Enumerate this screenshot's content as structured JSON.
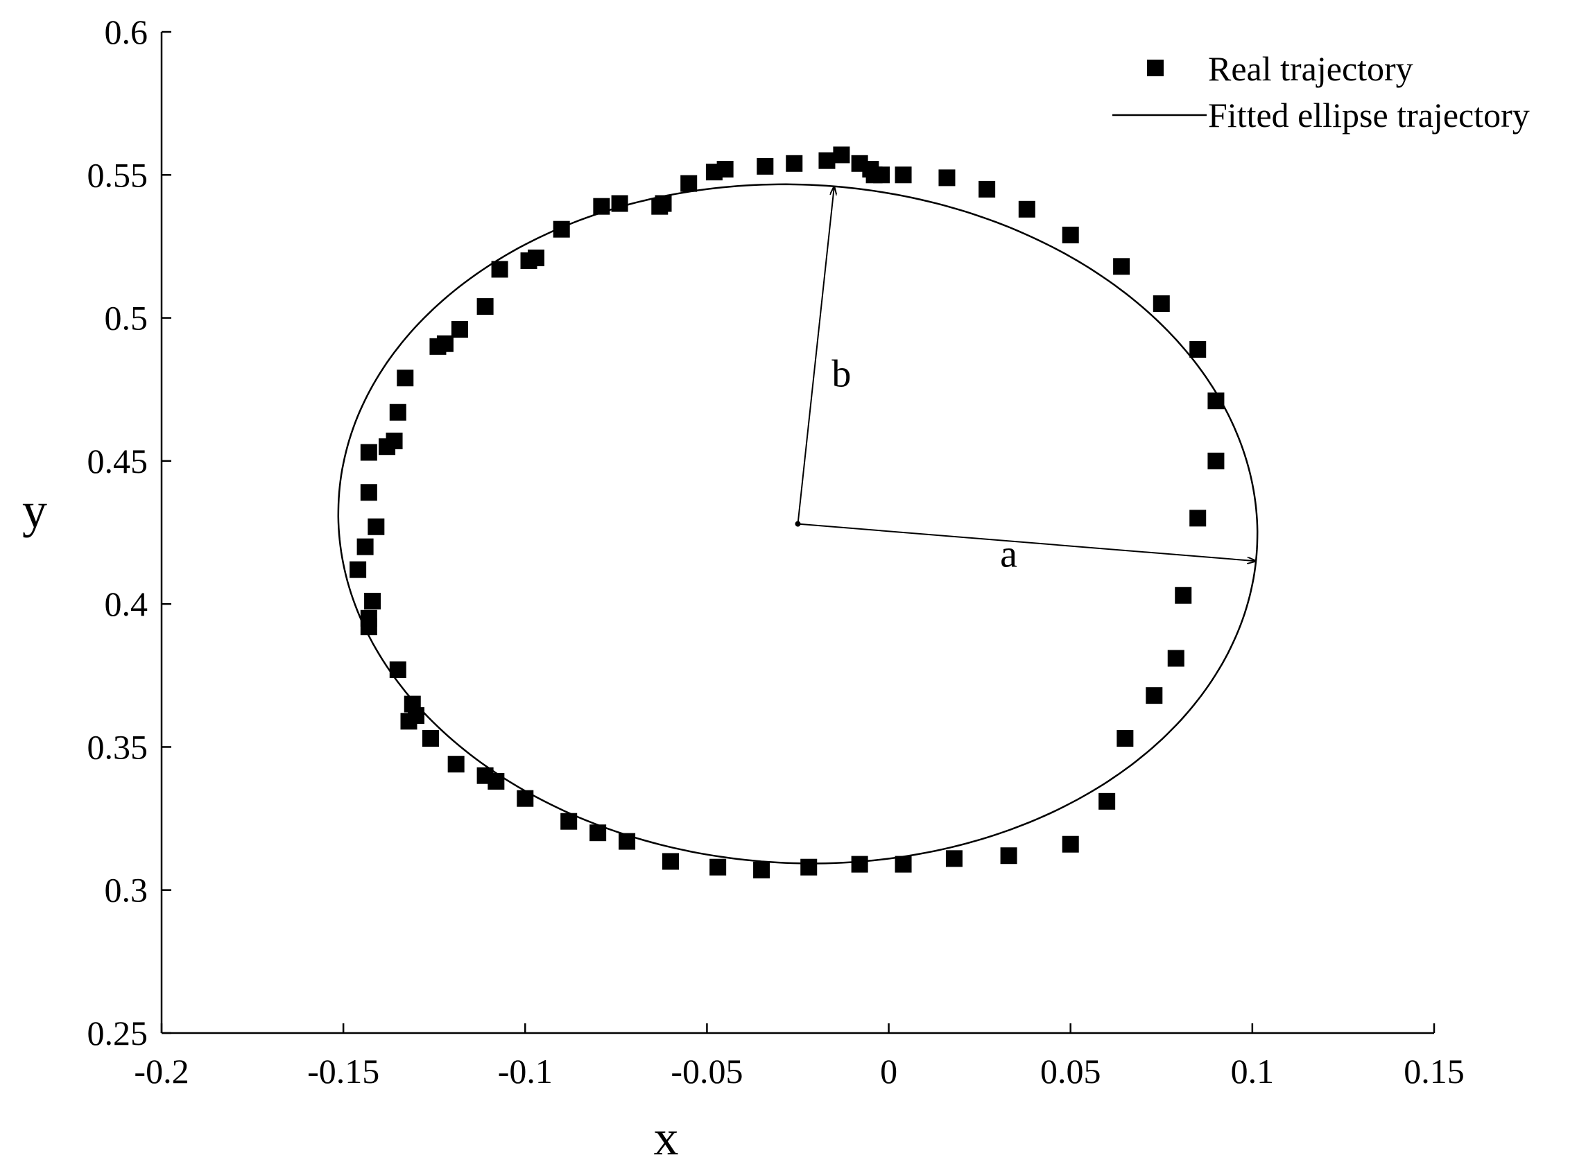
{
  "chart_data": {
    "type": "scatter",
    "xlabel": "x",
    "ylabel": "y",
    "xlim": [
      -0.2,
      0.15
    ],
    "ylim": [
      0.25,
      0.6
    ],
    "xticks": [
      -0.2,
      -0.15,
      -0.1,
      -0.05,
      0,
      0.05,
      0.1,
      0.15
    ],
    "yticks": [
      0.25,
      0.3,
      0.35,
      0.4,
      0.45,
      0.5,
      0.55,
      0.6
    ],
    "xtick_labels": [
      "-0.2",
      "-0.15",
      "-0.1",
      "-0.05",
      "0",
      "0.05",
      "0.1",
      "0.15"
    ],
    "ytick_labels": [
      "0.25",
      "0.3",
      "0.35",
      "0.4",
      "0.45",
      "0.5",
      "0.55",
      "0.6"
    ],
    "grid": false,
    "legend_position": "top-right",
    "series": [
      {
        "name": "Real trajectory",
        "kind": "markers",
        "marker": "square",
        "color": "#000000",
        "points": [
          [
            -0.013,
            0.557
          ],
          [
            -0.017,
            0.555
          ],
          [
            -0.026,
            0.554
          ],
          [
            -0.034,
            0.553
          ],
          [
            -0.045,
            0.552
          ],
          [
            -0.048,
            0.551
          ],
          [
            -0.055,
            0.547
          ],
          [
            -0.063,
            0.539
          ],
          [
            -0.062,
            0.54
          ],
          [
            -0.074,
            0.54
          ],
          [
            -0.079,
            0.539
          ],
          [
            -0.09,
            0.531
          ],
          [
            -0.097,
            0.521
          ],
          [
            -0.099,
            0.52
          ],
          [
            -0.107,
            0.517
          ],
          [
            -0.111,
            0.504
          ],
          [
            -0.118,
            0.496
          ],
          [
            -0.122,
            0.491
          ],
          [
            -0.124,
            0.49
          ],
          [
            -0.133,
            0.479
          ],
          [
            -0.135,
            0.467
          ],
          [
            -0.136,
            0.457
          ],
          [
            -0.138,
            0.455
          ],
          [
            -0.143,
            0.453
          ],
          [
            -0.143,
            0.439
          ],
          [
            -0.141,
            0.427
          ],
          [
            -0.144,
            0.42
          ],
          [
            -0.146,
            0.412
          ],
          [
            -0.142,
            0.401
          ],
          [
            -0.143,
            0.395
          ],
          [
            -0.143,
            0.392
          ],
          [
            -0.135,
            0.377
          ],
          [
            -0.131,
            0.365
          ],
          [
            -0.13,
            0.361
          ],
          [
            -0.132,
            0.359
          ],
          [
            -0.126,
            0.353
          ],
          [
            -0.119,
            0.344
          ],
          [
            -0.111,
            0.34
          ],
          [
            -0.108,
            0.338
          ],
          [
            -0.1,
            0.332
          ],
          [
            -0.088,
            0.324
          ],
          [
            -0.08,
            0.32
          ],
          [
            -0.072,
            0.317
          ],
          [
            -0.06,
            0.31
          ],
          [
            -0.047,
            0.308
          ],
          [
            -0.035,
            0.307
          ],
          [
            -0.022,
            0.308
          ],
          [
            -0.008,
            0.309
          ],
          [
            0.004,
            0.309
          ],
          [
            0.018,
            0.311
          ],
          [
            0.033,
            0.312
          ],
          [
            0.05,
            0.316
          ],
          [
            0.06,
            0.331
          ],
          [
            0.065,
            0.353
          ],
          [
            0.073,
            0.368
          ],
          [
            0.079,
            0.381
          ],
          [
            0.081,
            0.403
          ],
          [
            0.085,
            0.43
          ],
          [
            0.09,
            0.45
          ],
          [
            0.09,
            0.471
          ],
          [
            0.085,
            0.489
          ],
          [
            0.075,
            0.505
          ],
          [
            0.064,
            0.518
          ],
          [
            0.05,
            0.529
          ],
          [
            0.038,
            0.538
          ],
          [
            0.027,
            0.545
          ],
          [
            0.016,
            0.549
          ],
          [
            0.004,
            0.55
          ],
          [
            -0.002,
            0.55
          ],
          [
            -0.004,
            0.55
          ],
          [
            -0.005,
            0.552
          ],
          [
            -0.008,
            0.554
          ]
        ]
      },
      {
        "name": "Fitted ellipse trajectory",
        "kind": "line",
        "color": "#000000",
        "ellipse": {
          "center": [
            -0.025,
            0.428
          ],
          "major_axis_end": [
            0.101,
            0.415
          ],
          "minor_axis_end": [
            -0.015,
            0.546
          ]
        }
      }
    ],
    "annotations": [
      {
        "text": "a",
        "at": [
          0.033,
          0.413
        ]
      },
      {
        "text": "b",
        "at": [
          -0.013,
          0.476
        ]
      }
    ]
  }
}
